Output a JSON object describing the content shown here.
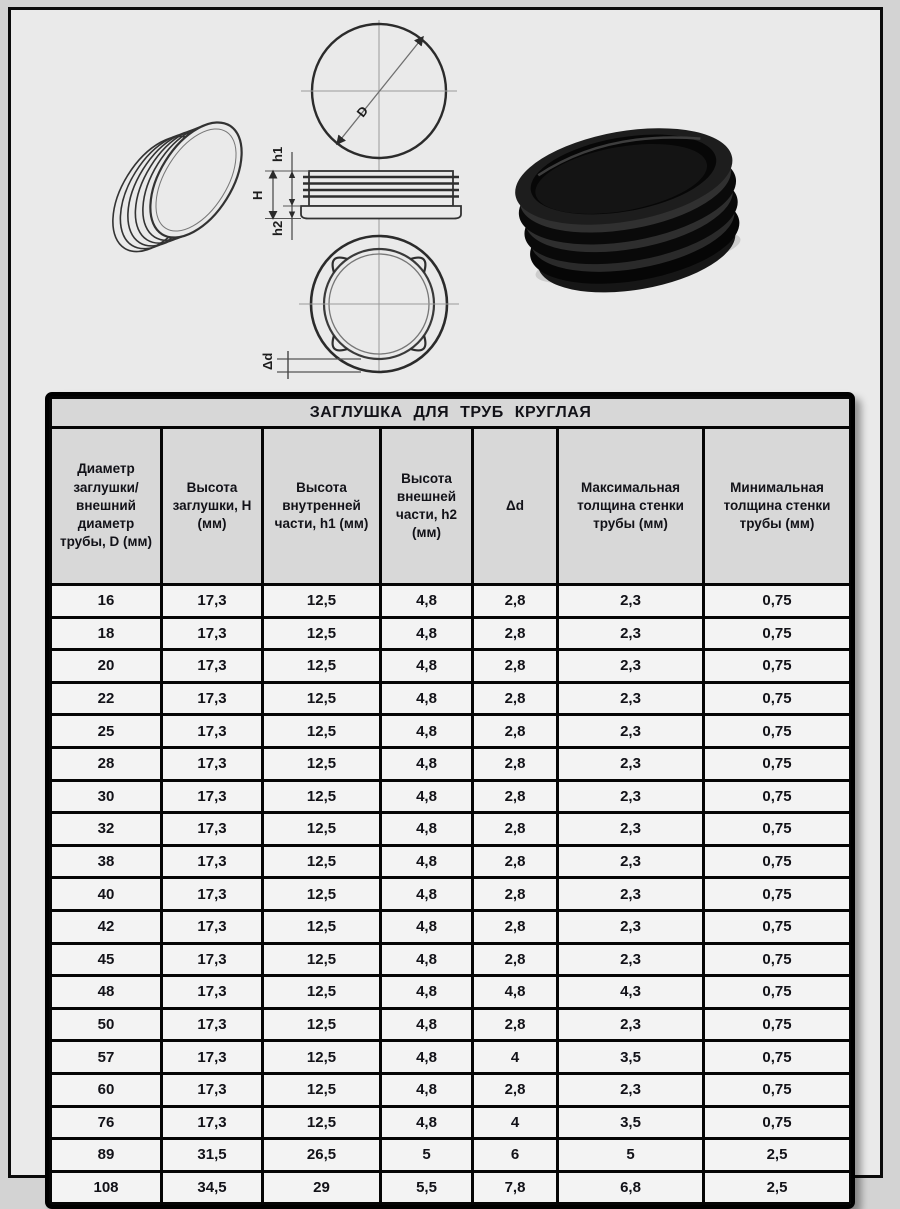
{
  "drawings": {
    "d_label": "D",
    "h1_label": "h1",
    "h_label": "H",
    "h2_label": "h2",
    "dd_label": "Δd"
  },
  "table": {
    "title": "ЗАГЛУШКА ДЛЯ ТРУБ КРУГЛАЯ",
    "columns": [
      "Диаметр заглушки/ внешний диаметр трубы, D (мм)",
      "Высота заглушки, H (мм)",
      "Высота внутренней части, h1 (мм)",
      "Высота внешней части, h2 (мм)",
      "Δd",
      "Максимальная толщина стенки трубы (мм)",
      "Минимальная толщина стенки трубы (мм)"
    ],
    "rows": [
      [
        "16",
        "17,3",
        "12,5",
        "4,8",
        "2,8",
        "2,3",
        "0,75"
      ],
      [
        "18",
        "17,3",
        "12,5",
        "4,8",
        "2,8",
        "2,3",
        "0,75"
      ],
      [
        "20",
        "17,3",
        "12,5",
        "4,8",
        "2,8",
        "2,3",
        "0,75"
      ],
      [
        "22",
        "17,3",
        "12,5",
        "4,8",
        "2,8",
        "2,3",
        "0,75"
      ],
      [
        "25",
        "17,3",
        "12,5",
        "4,8",
        "2,8",
        "2,3",
        "0,75"
      ],
      [
        "28",
        "17,3",
        "12,5",
        "4,8",
        "2,8",
        "2,3",
        "0,75"
      ],
      [
        "30",
        "17,3",
        "12,5",
        "4,8",
        "2,8",
        "2,3",
        "0,75"
      ],
      [
        "32",
        "17,3",
        "12,5",
        "4,8",
        "2,8",
        "2,3",
        "0,75"
      ],
      [
        "38",
        "17,3",
        "12,5",
        "4,8",
        "2,8",
        "2,3",
        "0,75"
      ],
      [
        "40",
        "17,3",
        "12,5",
        "4,8",
        "2,8",
        "2,3",
        "0,75"
      ],
      [
        "42",
        "17,3",
        "12,5",
        "4,8",
        "2,8",
        "2,3",
        "0,75"
      ],
      [
        "45",
        "17,3",
        "12,5",
        "4,8",
        "2,8",
        "2,3",
        "0,75"
      ],
      [
        "48",
        "17,3",
        "12,5",
        "4,8",
        "4,8",
        "4,3",
        "0,75"
      ],
      [
        "50",
        "17,3",
        "12,5",
        "4,8",
        "2,8",
        "2,3",
        "0,75"
      ],
      [
        "57",
        "17,3",
        "12,5",
        "4,8",
        "4",
        "3,5",
        "0,75"
      ],
      [
        "60",
        "17,3",
        "12,5",
        "4,8",
        "2,8",
        "2,3",
        "0,75"
      ],
      [
        "76",
        "17,3",
        "12,5",
        "4,8",
        "4",
        "3,5",
        "0,75"
      ],
      [
        "89",
        "31,5",
        "26,5",
        "5",
        "6",
        "5",
        "2,5"
      ],
      [
        "108",
        "34,5",
        "29",
        "5,5",
        "7,8",
        "6,8",
        "2,5"
      ]
    ]
  },
  "colors": {
    "page_bg": "#d3d3d3",
    "panel_bg": "#eaeaea",
    "header_bg": "#d8d8d8",
    "cell_bg": "#f3f3f3",
    "border": "#0b0b0b",
    "plug_black": "#121212"
  }
}
